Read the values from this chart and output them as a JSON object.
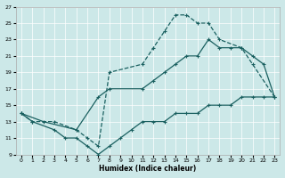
{
  "xlabel": "Humidex (Indice chaleur)",
  "bg_color": "#cce8e8",
  "line_color": "#1a6060",
  "xlim": [
    -0.5,
    23.5
  ],
  "ylim": [
    9,
    27
  ],
  "xticks": [
    0,
    1,
    2,
    3,
    4,
    5,
    6,
    7,
    8,
    9,
    10,
    11,
    12,
    13,
    14,
    15,
    16,
    17,
    18,
    19,
    20,
    21,
    22,
    23
  ],
  "yticks": [
    9,
    11,
    13,
    15,
    17,
    19,
    21,
    23,
    25,
    27
  ],
  "line1_dashed": {
    "x": [
      0,
      1,
      3,
      5,
      6,
      7,
      8,
      11,
      12,
      13,
      14,
      15,
      16,
      17,
      18,
      20,
      21,
      23
    ],
    "y": [
      14,
      13,
      13,
      12,
      11,
      10,
      19,
      20,
      22,
      24,
      26,
      26,
      25,
      25,
      23,
      22,
      20,
      16
    ]
  },
  "line2_solid_upper": {
    "x": [
      0,
      2,
      5,
      7,
      8,
      11,
      12,
      13,
      14,
      15,
      16,
      17,
      18,
      19,
      20,
      21,
      22,
      23
    ],
    "y": [
      14,
      13,
      12,
      16,
      17,
      17,
      18,
      19,
      20,
      21,
      21,
      23,
      22,
      22,
      22,
      21,
      20,
      16
    ]
  },
  "line3_solid_lower": {
    "x": [
      0,
      1,
      3,
      4,
      5,
      6,
      7,
      8,
      9,
      10,
      11,
      12,
      13,
      14,
      15,
      16,
      17,
      18,
      19,
      20,
      21,
      22,
      23
    ],
    "y": [
      14,
      13,
      12,
      11,
      11,
      10,
      9,
      10,
      11,
      12,
      13,
      13,
      13,
      14,
      14,
      14,
      15,
      15,
      15,
      16,
      16,
      16,
      16
    ]
  }
}
